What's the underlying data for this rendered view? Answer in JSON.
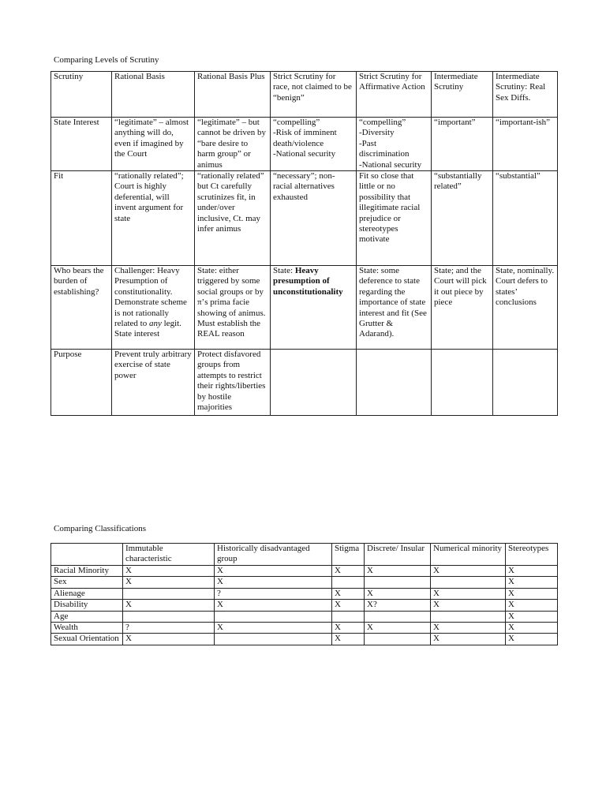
{
  "scrutiny_table": {
    "title": "Comparing Levels of Scrutiny",
    "rows": [
      [
        "Scrutiny",
        "Rational Basis",
        "Rational Basis Plus",
        "Strict Scrutiny for race, not claimed to be “benign”",
        "Strict Scrutiny for Affirmative Action",
        "Intermediate Scrutiny",
        "Intermediate Scrutiny: Real Sex Diffs."
      ],
      [
        "State Interest",
        "“legitimate” – almost anything will do, even if imagined by the Court",
        "“legitimate” – but cannot be driven by “bare desire to harm group” or animus",
        "“compelling”\n-Risk of imminent death/violence\n-National security",
        "“compelling”\n-Diversity\n-Past discrimination\n-National security",
        "“important”",
        "“important-ish”"
      ],
      [
        "Fit",
        "“rationally related”; Court is highly deferential, will invent argument for state",
        "“rationally related” but Ct carefully scrutinizes fit, in under/over inclusive, Ct. may infer animus",
        "“necessary”; non-racial alternatives exhausted",
        "Fit so close that little or no possibility that illegitimate racial prejudice or stereotypes motivate",
        "“substantially related”",
        "“substantial”"
      ],
      [
        "Who bears the burden of establishing?",
        [
          {
            "t": "Challenger: Heavy Presumption of constitutionality. Demonstrate scheme is not rationally related to "
          },
          {
            "t": "any",
            "i": true
          },
          {
            "t": " legit. State interest"
          }
        ],
        "State: either triggered by some social groups or by π’s prima facie showing of animus.  Must establish the REAL reason",
        [
          {
            "t": "State: "
          },
          {
            "t": "Heavy presumption of unconstitutionality",
            "b": true
          }
        ],
        "State: some deference to state regarding the importance of state interest and fit (See Grutter & Adarand).",
        "State; and the Court will pick it out piece by piece",
        "State, nominally. Court defers to states’ conclusions"
      ],
      [
        "Purpose",
        "Prevent truly arbitrary exercise of state power",
        "Protect disfavored groups from attempts to restrict their rights/liberties by hostile majorities",
        "",
        "",
        "",
        ""
      ]
    ]
  },
  "classification_table": {
    "title": "Comparing Classifications",
    "headers": [
      "",
      "Immutable characteristic",
      "Historically disadvantaged group",
      "Stigma",
      "Discrete/ Insular",
      "Numerical minority",
      "Stereotypes"
    ],
    "rows": [
      [
        "Racial Minority",
        "X",
        "X",
        "X",
        "X",
        "X",
        "X"
      ],
      [
        "Sex",
        "X",
        "X",
        "",
        "",
        "",
        "X"
      ],
      [
        "Alienage",
        "",
        "?",
        "X",
        "X",
        "X",
        "X"
      ],
      [
        "Disability",
        "X",
        "X",
        "X",
        "X?",
        "X",
        "X"
      ],
      [
        "Age",
        "",
        "",
        "",
        "",
        "",
        "X"
      ],
      [
        "Wealth",
        "?",
        "X",
        "X",
        "X",
        "X",
        "X"
      ],
      [
        "Sexual Orientation",
        "X",
        "",
        "X",
        "",
        "X",
        "X"
      ]
    ]
  }
}
